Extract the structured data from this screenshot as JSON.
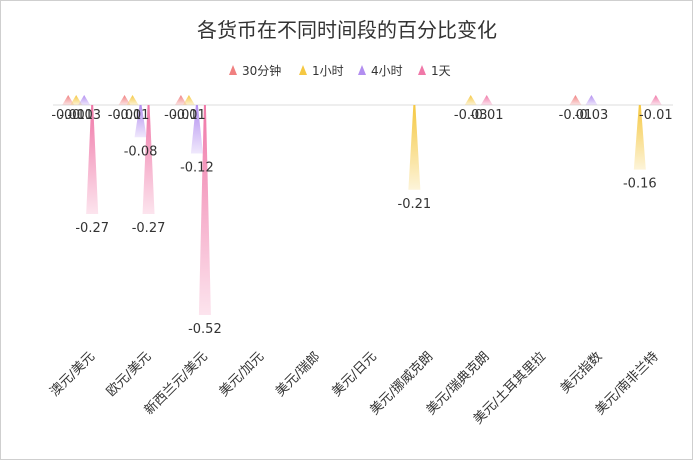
{
  "chart_data": {
    "type": "bar",
    "title": "各货币在不同时间段的百分比变化",
    "legend_position": "top-center",
    "categories": [
      "澳元/美元",
      "欧元/美元",
      "新西兰元/美元",
      "美元/加元",
      "美元/瑞郎",
      "美元/日元",
      "美元/挪威克朗",
      "美元/瑞典克朗",
      "美元/土耳其里拉",
      "美元指数",
      "美元/南非兰特"
    ],
    "series": [
      {
        "name": "30分钟",
        "color": "#f08080",
        "values": [
          -0.01,
          -0.01,
          -0.01,
          null,
          null,
          null,
          null,
          null,
          null,
          -0.01,
          null
        ]
      },
      {
        "name": "1小时",
        "color": "#f5c842",
        "values": [
          -0.01,
          -0.01,
          -0.01,
          null,
          null,
          null,
          -0.21,
          -0.03,
          null,
          null,
          -0.16
        ]
      },
      {
        "name": "4小时",
        "color": "#b28ef0",
        "values": [
          -0.03,
          -0.08,
          -0.12,
          null,
          null,
          null,
          null,
          null,
          null,
          -0.03,
          null
        ]
      },
      {
        "name": "1天",
        "color": "#f078a8",
        "values": [
          -0.27,
          -0.27,
          -0.52,
          null,
          null,
          null,
          null,
          -0.01,
          null,
          null,
          -0.01
        ]
      }
    ],
    "value_labels": [
      [
        "-0.01",
        "-0.01",
        "-0.01",
        "",
        "",
        "",
        "",
        "",
        "",
        "-0.01",
        ""
      ],
      [
        "-0.01",
        "-0.01",
        "-0.01",
        "",
        "",
        "",
        "-0.21",
        "-0.03",
        "",
        "",
        "-0.16"
      ],
      [
        "-0.03",
        "-0.08",
        "-0.12",
        "",
        "",
        "",
        "",
        "",
        "",
        "-0.03",
        ""
      ],
      [
        "-0.27",
        "-0.27",
        "-0.52",
        "",
        "",
        "",
        "",
        "-0.01",
        "",
        "",
        "-0.01"
      ]
    ],
    "xlabel": "",
    "ylabel": "",
    "ylim": [
      -0.52,
      0
    ],
    "grid": false
  }
}
